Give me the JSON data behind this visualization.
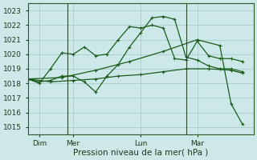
{
  "bg_color": "#cce8e8",
  "grid_color": "#aacccc",
  "line_color": "#1a5c1a",
  "title": "Pression niveau de la mer( hPa )",
  "ylim": [
    1014.5,
    1023.5
  ],
  "yticks": [
    1015,
    1016,
    1017,
    1018,
    1019,
    1020,
    1021,
    1022,
    1023
  ],
  "xlim": [
    0,
    20
  ],
  "xlabel_ticks_labels": [
    "Dim",
    "Mer",
    "Lun",
    "Mar"
  ],
  "xlabel_ticks_pos": [
    1,
    4,
    10,
    15
  ],
  "vline_pos": [
    3.5,
    14.0
  ],
  "line1_x": [
    0,
    1,
    2,
    3,
    4,
    5,
    6,
    7,
    8,
    9,
    10,
    11,
    12,
    13,
    14,
    15,
    16,
    17,
    18,
    19
  ],
  "line1_y": [
    1018.3,
    1018.0,
    1019.0,
    1020.1,
    1020.0,
    1020.5,
    1019.9,
    1020.0,
    1021.0,
    1021.9,
    1021.8,
    1022.0,
    1021.8,
    1019.7,
    1019.6,
    1020.9,
    1019.9,
    1019.7,
    1019.7,
    1019.5
  ],
  "line2_x": [
    0,
    1,
    2,
    3,
    4,
    5,
    6,
    7,
    8,
    9,
    10,
    11,
    12,
    13,
    14,
    15,
    16,
    17,
    18,
    19
  ],
  "line2_y": [
    1018.3,
    1018.1,
    1018.2,
    1018.5,
    1018.5,
    1018.1,
    1017.4,
    1018.5,
    1019.3,
    1020.5,
    1021.5,
    1022.5,
    1022.6,
    1022.4,
    1019.8,
    1019.6,
    1019.2,
    1019.0,
    1019.0,
    1018.8
  ],
  "line3_x": [
    0,
    3,
    6,
    9,
    12,
    15,
    17,
    18,
    19
  ],
  "line3_y": [
    1018.3,
    1018.4,
    1018.9,
    1019.5,
    1020.2,
    1021.0,
    1020.6,
    1016.6,
    1015.2
  ],
  "line4_x": [
    0,
    2,
    4,
    6,
    8,
    10,
    12,
    14,
    16,
    18,
    19
  ],
  "line4_y": [
    1018.3,
    1018.1,
    1018.2,
    1018.3,
    1018.5,
    1018.6,
    1018.8,
    1019.0,
    1019.0,
    1018.9,
    1018.7
  ],
  "figsize": [
    3.2,
    2.0
  ],
  "dpi": 100
}
